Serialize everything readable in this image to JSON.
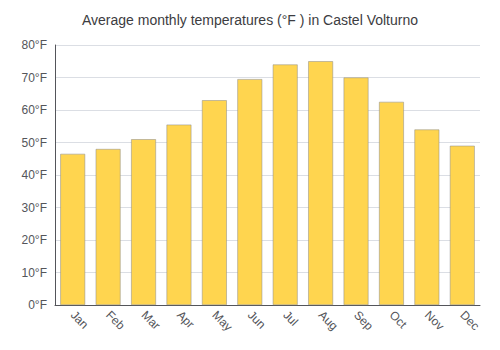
{
  "chart_data": {
    "type": "bar",
    "title": "Average monthly temperatures (°F ) in Castel Volturno",
    "categories": [
      "Jan",
      "Feb",
      "Mar",
      "Apr",
      "May",
      "Jun",
      "Jul",
      "Aug",
      "Sep",
      "Oct",
      "Nov",
      "Dec"
    ],
    "values": [
      46.5,
      48.0,
      51.0,
      55.5,
      63.0,
      69.5,
      74.0,
      75.0,
      70.0,
      62.5,
      54.0,
      49.0
    ],
    "color": "#FFD54F",
    "ylim": [
      0,
      80
    ],
    "yticks": [
      {
        "value": 0,
        "label": "0°F"
      },
      {
        "value": 10,
        "label": "10°F"
      },
      {
        "value": 20,
        "label": "20°F"
      },
      {
        "value": 30,
        "label": "30°F"
      },
      {
        "value": 40,
        "label": "40°F"
      },
      {
        "value": 50,
        "label": "50°F"
      },
      {
        "value": 60,
        "label": "60°F"
      },
      {
        "value": 70,
        "label": "70°F"
      },
      {
        "value": 80,
        "label": "80°F"
      }
    ],
    "grid": true
  }
}
